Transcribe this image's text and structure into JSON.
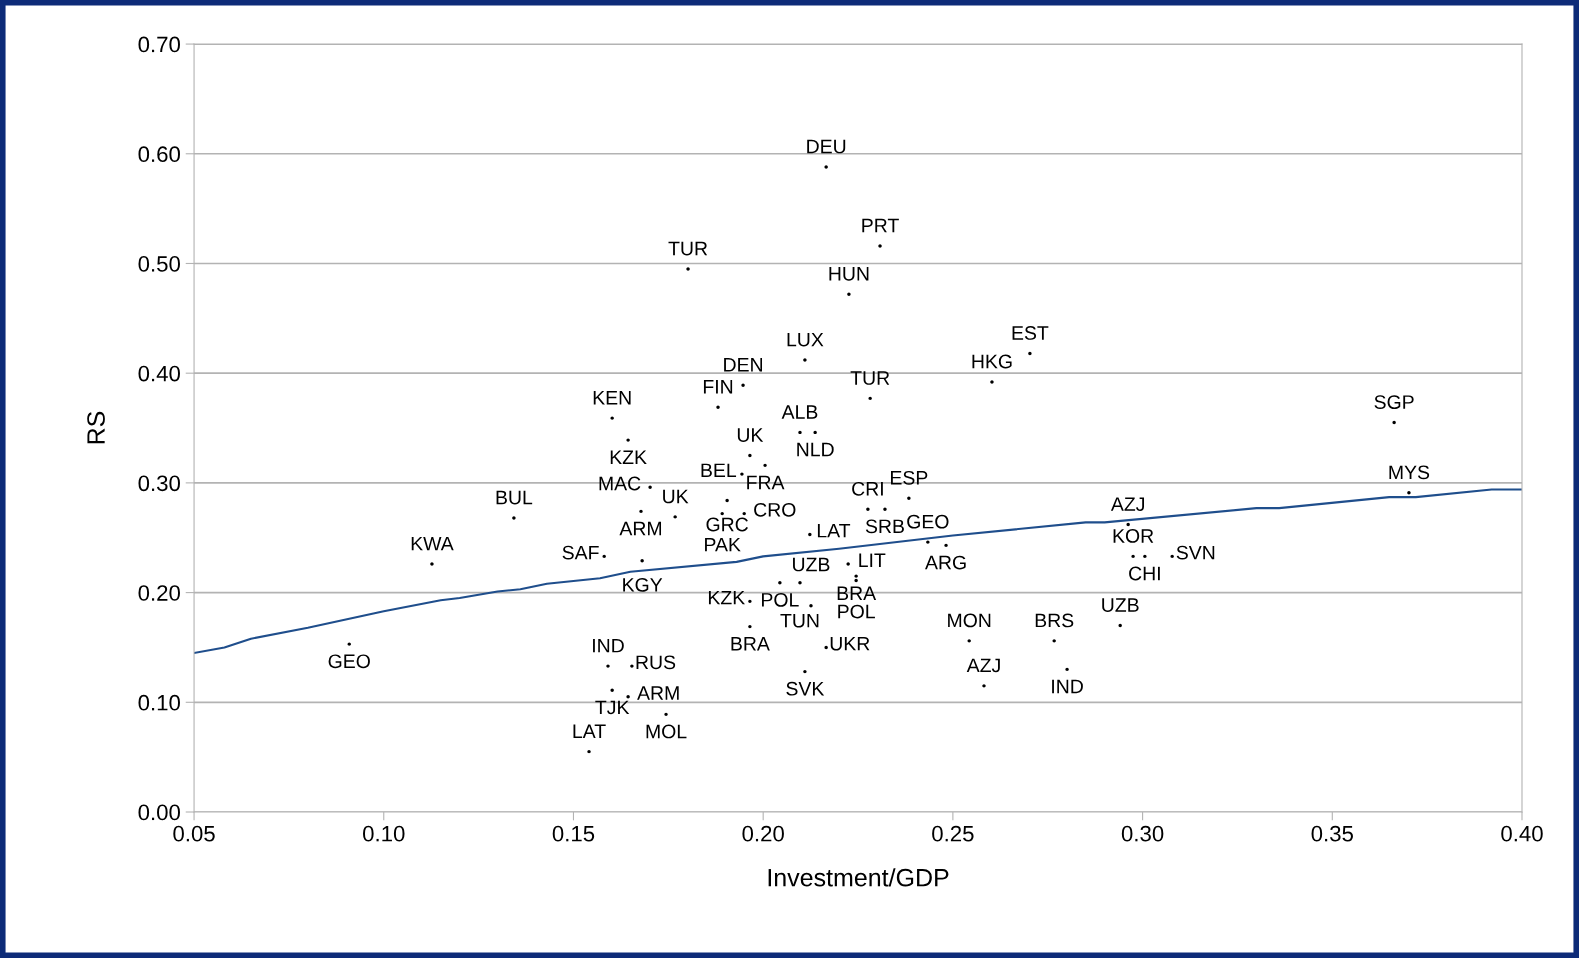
{
  "chart_data": {
    "type": "scatter",
    "xlabel": "Investment/GDP",
    "ylabel": "RS",
    "xlim": [
      0.05,
      0.4
    ],
    "xticks": [
      {
        "value": 0.05,
        "label": "0.05"
      },
      {
        "value": 0.1,
        "label": "0.10"
      },
      {
        "value": 0.15,
        "label": "0.15"
      },
      {
        "value": 0.2,
        "label": "0.20"
      },
      {
        "value": 0.25,
        "label": "0.25"
      },
      {
        "value": 0.3,
        "label": "0.30"
      },
      {
        "value": 0.35,
        "label": "0.35"
      },
      {
        "value": 0.4,
        "label": "0.40"
      }
    ],
    "ylim": [
      0,
      0.7
    ],
    "yticks": [
      {
        "value": 0,
        "label": "0.00"
      },
      {
        "value": 0.1,
        "label": "0.10"
      },
      {
        "value": 0.2,
        "label": "0.20"
      },
      {
        "value": 0.3,
        "label": "0.30"
      },
      {
        "value": 0.4,
        "label": "0.40"
      },
      {
        "value": 0.5,
        "label": "0.50"
      },
      {
        "value": 0.6,
        "label": "0.60"
      },
      {
        "value": 0.7,
        "label": "0.70"
      }
    ],
    "grid": "y",
    "legend": false,
    "series": [
      {
        "color": "#000000",
        "marker": "circle",
        "x": [
          0.2166,
          0.2308,
          0.1802,
          0.2226,
          0.211,
          0.2703,
          0.2603,
          0.1947,
          0.2282,
          0.1881,
          0.3663,
          0.1602,
          0.1644,
          0.2097,
          0.2137,
          0.1965,
          0.2005,
          0.1944,
          0.1702,
          0.3702,
          0.2384,
          0.1905,
          0.2276,
          0.2321,
          0.1678,
          0.1768,
          0.1892,
          0.195,
          0.1343,
          0.2962,
          0.2123,
          0.2434,
          0.2482,
          0.1581,
          0.1681,
          0.1127,
          0.2975,
          0.3006,
          0.3078,
          0.2224,
          0.2245,
          0.2245,
          0.2044,
          0.2097,
          0.1965,
          0.2126,
          0.1965,
          0.2941,
          0.2166,
          0.2543,
          0.2767,
          0.0909,
          0.2801,
          0.1591,
          0.1654,
          0.211,
          0.1602,
          0.1644,
          0.2582,
          0.1744,
          0.1541
        ],
        "values": [
          0.588,
          0.516,
          0.495,
          0.472,
          0.412,
          0.418,
          0.392,
          0.389,
          0.377,
          0.369,
          0.355,
          0.359,
          0.339,
          0.346,
          0.346,
          0.325,
          0.316,
          0.308,
          0.296,
          0.291,
          0.286,
          0.284,
          0.276,
          0.276,
          0.274,
          0.269,
          0.272,
          0.272,
          0.268,
          0.262,
          0.253,
          0.246,
          0.243,
          0.233,
          0.229,
          0.226,
          0.233,
          0.233,
          0.233,
          0.226,
          0.215,
          0.211,
          0.209,
          0.209,
          0.192,
          0.188,
          0.169,
          0.17,
          0.15,
          0.156,
          0.156,
          0.153,
          0.13,
          0.133,
          0.133,
          0.128,
          0.111,
          0.105,
          0.115,
          0.089,
          0.055
        ],
        "value_labels": [
          "DEU",
          "PRT",
          "TUR",
          "HUN",
          "LUX",
          "EST",
          "HKG",
          "DEN",
          "TUR",
          "FIN",
          "SGP",
          "KEN",
          "KZK",
          "ALB",
          "NLD",
          "UK",
          "FRA",
          "BEL",
          "MAC",
          "MYS",
          "ESP",
          "GRC",
          "CRI",
          "SRB",
          "ARM",
          "UK",
          "PAK",
          "CRO",
          "BUL",
          "AZJ",
          "LAT",
          "GEO",
          "ARG",
          "SAF",
          "KGY",
          "KWA",
          "KOR",
          "CHI",
          "SVN",
          "LIT",
          "BRA",
          "POL",
          "POL",
          "TUN",
          "KZK",
          "UZB",
          "BRA",
          "UZB",
          "UKR",
          "MON",
          "BRS",
          "GEO",
          "IND",
          "IND",
          "RUS",
          "SVK",
          "TJK",
          "ARM",
          "AZJ",
          "MOL",
          "LAT"
        ]
      },
      {
        "type": "line",
        "color": "#1f4e8c",
        "x": [
          0.05,
          0.058,
          0.065,
          0.08,
          0.1,
          0.115,
          0.12,
          0.13,
          0.136,
          0.143,
          0.157,
          0.165,
          0.193,
          0.2,
          0.22,
          0.25,
          0.285,
          0.29,
          0.33,
          0.336,
          0.365,
          0.372,
          0.392,
          0.4
        ],
        "values": [
          0.145,
          0.15,
          0.158,
          0.168,
          0.183,
          0.193,
          0.195,
          0.201,
          0.203,
          0.208,
          0.213,
          0.219,
          0.228,
          0.233,
          0.24,
          0.252,
          0.264,
          0.264,
          0.277,
          0.277,
          0.287,
          0.287,
          0.294,
          0.294
        ]
      }
    ]
  }
}
